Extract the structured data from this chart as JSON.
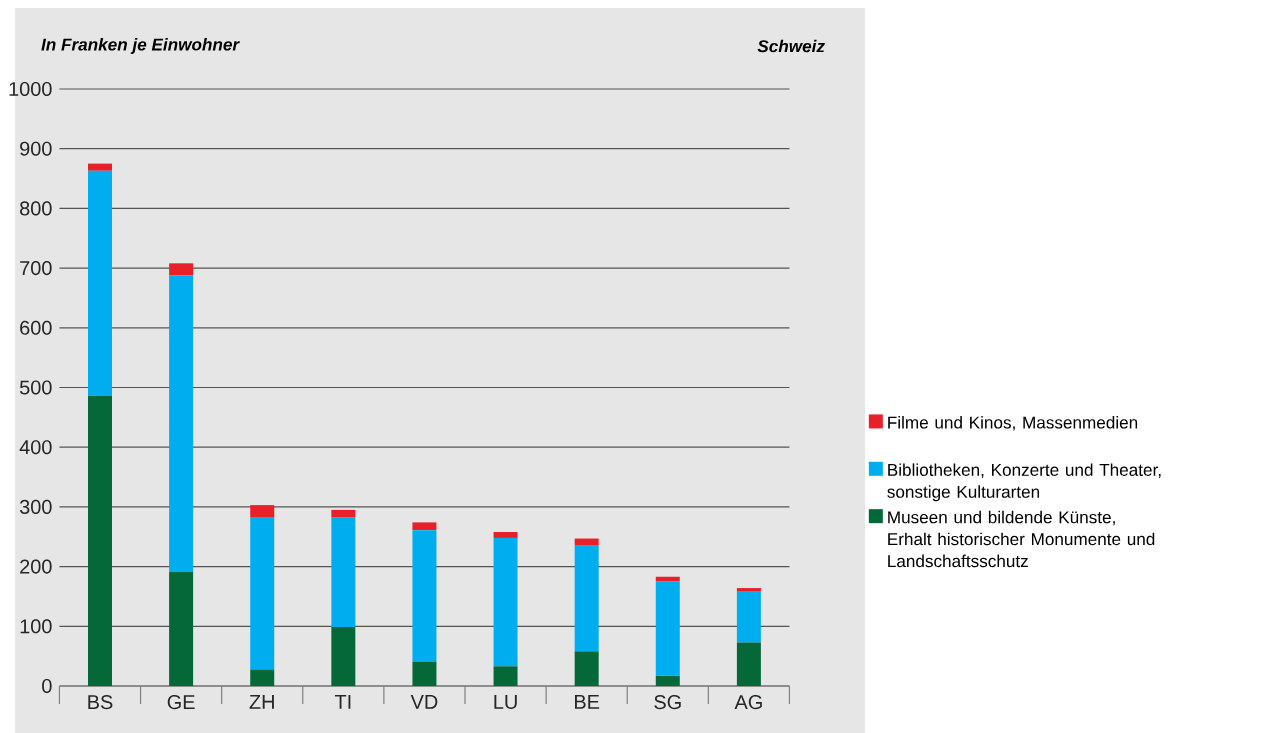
{
  "chart_data": {
    "type": "bar",
    "stacked": true,
    "ylabel": "In Franken je Einwohner",
    "annotations": [
      "Schweiz"
    ],
    "categories": [
      "BS",
      "GE",
      "ZH",
      "TI",
      "VD",
      "LU",
      "BE",
      "SG",
      "AG"
    ],
    "series": [
      {
        "name": "Museen und bildende Künste, Erhalt historischer Monumente und Landschaftsschutz",
        "color": "#056839",
        "values": [
          486,
          191,
          27,
          99,
          41,
          33,
          58,
          17,
          73
        ]
      },
      {
        "name": "Bibliotheken, Konzerte und Theater, sonstige Kulturarten",
        "color": "#00aeef",
        "values": [
          377,
          497,
          256,
          183,
          220,
          215,
          177,
          158,
          86
        ]
      },
      {
        "name": "Filme und Kinos, Massenmedien",
        "color": "#e8202a",
        "values": [
          12,
          20,
          20,
          13,
          13,
          10,
          12,
          8,
          5
        ]
      }
    ],
    "ylim": [
      0,
      1000
    ],
    "yticks": [
      0,
      100,
      200,
      300,
      400,
      500,
      600,
      700,
      800,
      900,
      1000
    ],
    "grid": "y",
    "legend": "right"
  }
}
